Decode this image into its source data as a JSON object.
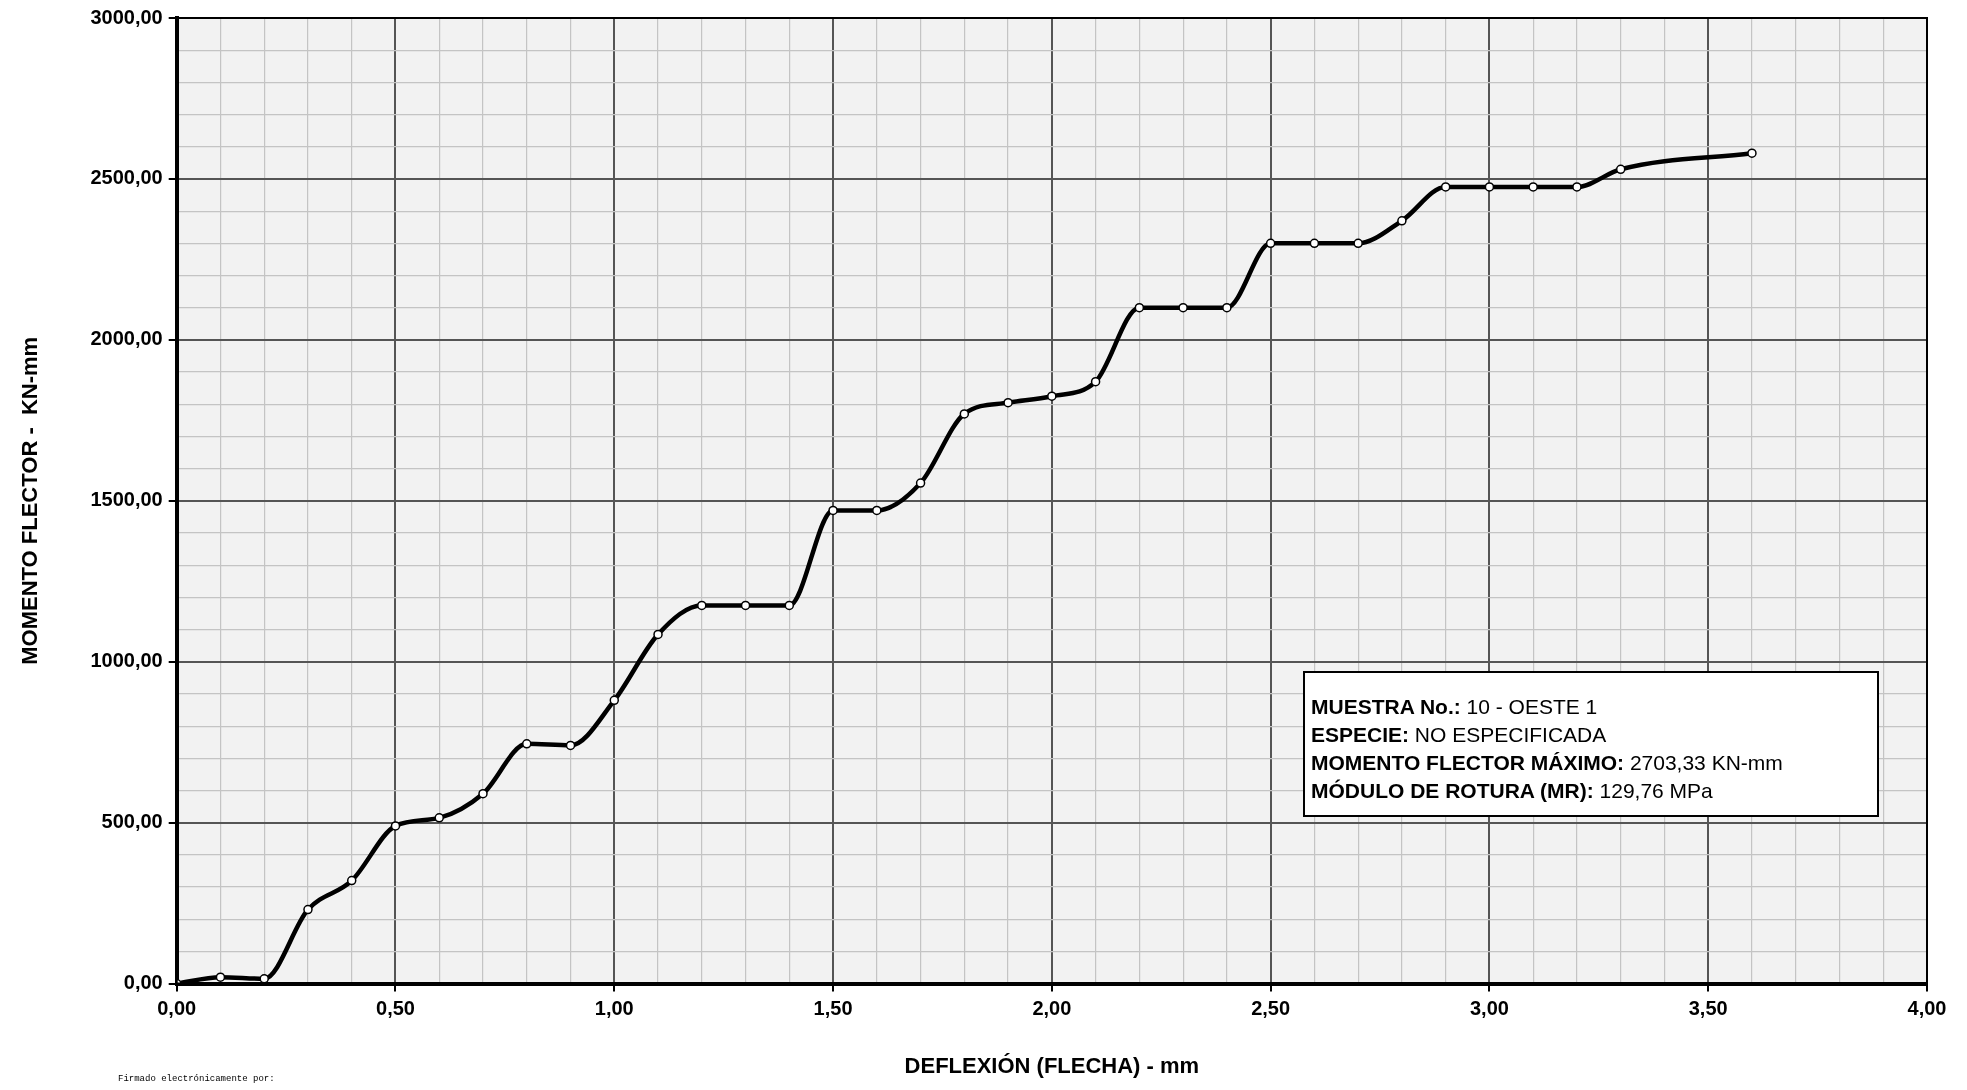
{
  "chart_data": {
    "type": "line",
    "xlabel": "DEFLEXIÓN (FLECHA) - mm",
    "ylabel": "MOMENTO FLECTOR -  KN-mm",
    "x": [
      0,
      0.1,
      0.2,
      0.3,
      0.4,
      0.5,
      0.6,
      0.7,
      0.8,
      0.9,
      1.0,
      1.1,
      1.2,
      1.3,
      1.4,
      1.5,
      1.6,
      1.7,
      1.8,
      1.9,
      2.0,
      2.1,
      2.2,
      2.3,
      2.4,
      2.5,
      2.6,
      2.7,
      2.8,
      2.9,
      3.0,
      3.1,
      3.2,
      3.3,
      3.6
    ],
    "series": [
      {
        "color": "#000000",
        "values": [
          0,
          20,
          15,
          230,
          320,
          490,
          515,
          590,
          745,
          740,
          880,
          1085,
          1175,
          1175,
          1175,
          1470,
          1470,
          1555,
          1770,
          1805,
          1825,
          1870,
          2100,
          2100,
          2100,
          2300,
          2300,
          2300,
          2370,
          2475,
          2475,
          2475,
          2475,
          2530,
          2580
        ]
      }
    ],
    "xlim": [
      0,
      4
    ],
    "ylim": [
      0,
      3000
    ],
    "xticks": [
      {
        "value": 0,
        "label": "0,00"
      },
      {
        "value": 0.1,
        "label": null
      },
      {
        "value": 0.2,
        "label": null
      },
      {
        "value": 0.3,
        "label": null
      },
      {
        "value": 0.4,
        "label": null
      },
      {
        "value": 0.5,
        "label": "0,50"
      },
      {
        "value": 0.6,
        "label": null
      },
      {
        "value": 0.7,
        "label": null
      },
      {
        "value": 0.8,
        "label": null
      },
      {
        "value": 0.9,
        "label": null
      },
      {
        "value": 1,
        "label": "1,00"
      },
      {
        "value": 1.1,
        "label": null
      },
      {
        "value": 1.2,
        "label": null
      },
      {
        "value": 1.3,
        "label": null
      },
      {
        "value": 1.4,
        "label": null
      },
      {
        "value": 1.5,
        "label": "1,50"
      },
      {
        "value": 1.6,
        "label": null
      },
      {
        "value": 1.7,
        "label": null
      },
      {
        "value": 1.8,
        "label": null
      },
      {
        "value": 1.9,
        "label": null
      },
      {
        "value": 2,
        "label": "2,00"
      },
      {
        "value": 2.1,
        "label": null
      },
      {
        "value": 2.2,
        "label": null
      },
      {
        "value": 2.3,
        "label": null
      },
      {
        "value": 2.4,
        "label": null
      },
      {
        "value": 2.5,
        "label": "2,50"
      },
      {
        "value": 2.6,
        "label": null
      },
      {
        "value": 2.7,
        "label": null
      },
      {
        "value": 2.8,
        "label": null
      },
      {
        "value": 2.9,
        "label": null
      },
      {
        "value": 3,
        "label": "3,00"
      },
      {
        "value": 3.1,
        "label": null
      },
      {
        "value": 3.2,
        "label": null
      },
      {
        "value": 3.3,
        "label": null
      },
      {
        "value": 3.4,
        "label": null
      },
      {
        "value": 3.5,
        "label": "3,50"
      },
      {
        "value": 3.6,
        "label": null
      },
      {
        "value": 3.7,
        "label": null
      },
      {
        "value": 3.8,
        "label": null
      },
      {
        "value": 3.9,
        "label": null
      },
      {
        "value": 4,
        "label": "4,00"
      }
    ],
    "yticks": [
      {
        "value": 0,
        "label": "0,00"
      },
      {
        "value": 100,
        "label": null
      },
      {
        "value": 200,
        "label": null
      },
      {
        "value": 300,
        "label": null
      },
      {
        "value": 400,
        "label": null
      },
      {
        "value": 500,
        "label": "500,00"
      },
      {
        "value": 600,
        "label": null
      },
      {
        "value": 700,
        "label": null
      },
      {
        "value": 800,
        "label": null
      },
      {
        "value": 900,
        "label": null
      },
      {
        "value": 1000,
        "label": "1000,00"
      },
      {
        "value": 1100,
        "label": null
      },
      {
        "value": 1200,
        "label": null
      },
      {
        "value": 1300,
        "label": null
      },
      {
        "value": 1400,
        "label": null
      },
      {
        "value": 1500,
        "label": "1500,00"
      },
      {
        "value": 1600,
        "label": null
      },
      {
        "value": 1700,
        "label": null
      },
      {
        "value": 1800,
        "label": null
      },
      {
        "value": 1900,
        "label": null
      },
      {
        "value": 2000,
        "label": "2000,00"
      },
      {
        "value": 2100,
        "label": null
      },
      {
        "value": 2200,
        "label": null
      },
      {
        "value": 2300,
        "label": null
      },
      {
        "value": 2400,
        "label": null
      },
      {
        "value": 2500,
        "label": "2500,00"
      },
      {
        "value": 2600,
        "label": null
      },
      {
        "value": 2700,
        "label": null
      },
      {
        "value": 2800,
        "label": null
      },
      {
        "value": 2900,
        "label": null
      },
      {
        "value": 3000,
        "label": "3000,00"
      }
    ],
    "grid": true,
    "marker": "circle",
    "line_style": "solid",
    "legend": false,
    "annotations": [
      "MUESTRA No.: 10 - OESTE 1",
      "ESPECIE: NO ESPECIFICADA",
      "MOMENTO FLECTOR MÁXIMO: 2703,33 KN-mm",
      "MÓDULO DE ROTURA (MR): 129,76 MPa",
      "Firmado electrónicamente por:"
    ]
  }
}
